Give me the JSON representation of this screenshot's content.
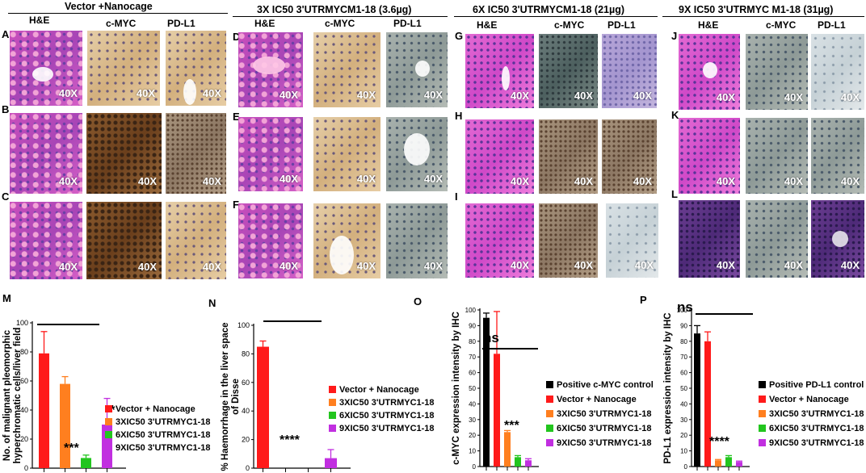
{
  "groups": [
    {
      "title": "Vector +Nanocage"
    },
    {
      "title": "3X IC50 3'UTRMYCM1-18 (3.6µg)"
    },
    {
      "title": "6X IC50 3'UTRMYCM1-18 (21µg)"
    },
    {
      "title": "9X IC50 3'UTRMYC M1-18 (31µg)"
    }
  ],
  "column_headers": [
    "H&E",
    "c-MYC",
    "PD-L1"
  ],
  "magnification": "40X",
  "panel_letters": [
    "A",
    "B",
    "C",
    "D",
    "E",
    "F",
    "G",
    "H",
    "I",
    "J",
    "K",
    "L"
  ],
  "chart_letters": [
    "M",
    "N",
    "O",
    "P"
  ],
  "colors": {
    "black": "#000000",
    "red": "#ff1a1a",
    "orange": "#ff7f1f",
    "green": "#22c51e",
    "purple": "#c12fe0"
  },
  "chart_data": [
    {
      "type": "bar",
      "ylabel": "No. of malignant pleomorphic hyperchromatic cells/liver field",
      "ylim": [
        0,
        100
      ],
      "yticks": [
        "0",
        "20",
        "40",
        "60",
        "80",
        "100"
      ],
      "series": [
        {
          "name": "Vector + Nanocage",
          "value": 79,
          "error": 15
        },
        {
          "name": "3XIC50 3'UTRMYC1-18",
          "value": 58,
          "error": 5
        },
        {
          "name": "6XIC50 3'UTRMYC1-18",
          "value": 7,
          "error": 2
        },
        {
          "name": "9XIC50 3'UTRMYC1-18",
          "value": 30,
          "error": 18
        }
      ],
      "annotations": [
        "***",
        "**"
      ]
    },
    {
      "type": "bar",
      "ylabel": "% Haemorrhage in the liver space of Disse",
      "ylim": [
        0,
        100
      ],
      "yticks": [
        "0",
        "20",
        "40",
        "60",
        "80",
        "100"
      ],
      "series": [
        {
          "name": "Vector + Nanocage",
          "value": 85,
          "error": 4
        },
        {
          "name": "3XIC50 3'UTRMYC1-18",
          "value": 0,
          "error": 0
        },
        {
          "name": "6XIC50 3'UTRMYC1-18",
          "value": 0,
          "error": 0
        },
        {
          "name": "9XIC50 3'UTRMYC1-18",
          "value": 7,
          "error": 6
        }
      ],
      "annotations": [
        "****"
      ]
    },
    {
      "type": "bar",
      "ylabel": "c-MYC expression intensity by IHC",
      "ylim": [
        0,
        100
      ],
      "yticks": [
        "0",
        "10",
        "20",
        "30",
        "40",
        "50",
        "60",
        "70",
        "80",
        "90",
        "100"
      ],
      "series": [
        {
          "name": "Positive c-MYC control",
          "value": 95,
          "error": 3
        },
        {
          "name": "Vector + Nanocage",
          "value": 72,
          "error": 27
        },
        {
          "name": "3XIC50 3'UTRMYC1-18",
          "value": 22,
          "error": 1
        },
        {
          "name": "6XIC50 3'UTRMYC1-18",
          "value": 6,
          "error": 1
        },
        {
          "name": "9XIC50 3'UTRMYC1-18",
          "value": 4,
          "error": 1
        }
      ],
      "annotations": [
        "ns",
        "***"
      ]
    },
    {
      "type": "bar",
      "ylabel": "PD-L1 expression intensity by IHC",
      "ylim": [
        0,
        100
      ],
      "yticks": [
        "0",
        "10",
        "20",
        "30",
        "40",
        "50",
        "60",
        "70",
        "80",
        "90",
        "100"
      ],
      "series": [
        {
          "name": "Positive PD-L1 control",
          "value": 85,
          "error": 5
        },
        {
          "name": "Vector + Nanocage",
          "value": 80,
          "error": 6
        },
        {
          "name": "3XIC50 3'UTRMYC1-18",
          "value": 4,
          "error": 0.5
        },
        {
          "name": "6XIC50 3'UTRMYC1-18",
          "value": 6,
          "error": 1
        },
        {
          "name": "9XIC50 3'UTRMYC1-18",
          "value": 3,
          "error": 0.5
        }
      ],
      "annotations": [
        "ns",
        "****"
      ]
    }
  ]
}
